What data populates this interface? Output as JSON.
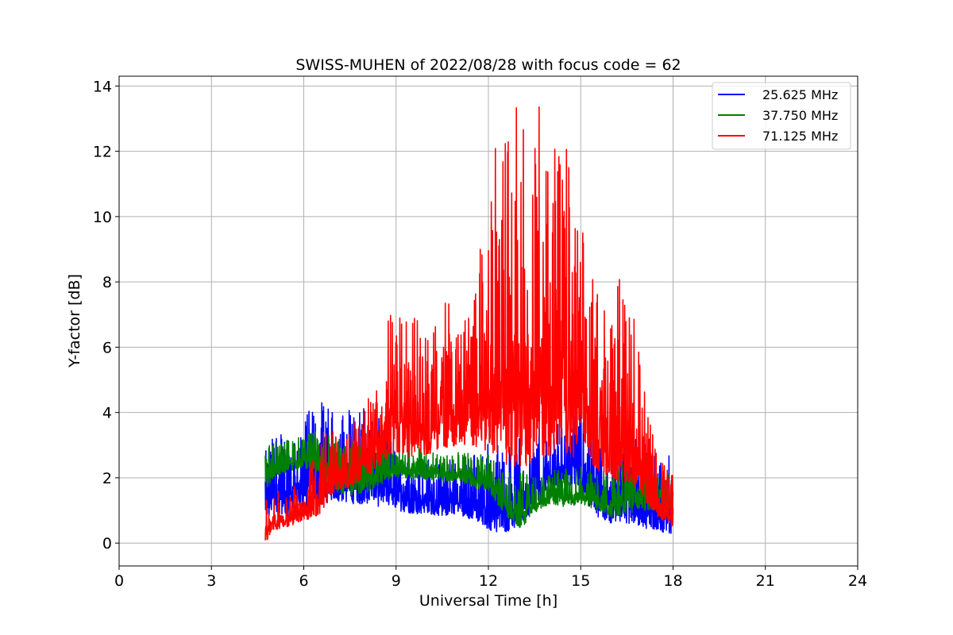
{
  "chart_data": {
    "type": "line",
    "title": "SWISS-MUHEN of 2022/08/28 with focus code = 62",
    "xlabel": "Universal Time [h]",
    "ylabel": "Y-factor [dB]",
    "xlim": [
      0,
      24
    ],
    "ylim": [
      -0.7,
      14.3
    ],
    "xticks": [
      "0",
      "3",
      "6",
      "9",
      "12",
      "15",
      "18",
      "21",
      "24"
    ],
    "yticks": [
      "0",
      "2",
      "4",
      "6",
      "8",
      "10",
      "12",
      "14"
    ],
    "grid": true,
    "legend_position": "top-right",
    "series": [
      {
        "name": "25.625 MHz",
        "color": "#0000ff",
        "x": [
          4.75,
          5.0,
          5.5,
          6.0,
          6.5,
          7.0,
          7.5,
          8.0,
          8.5,
          9.0,
          9.5,
          10.0,
          10.5,
          11.0,
          11.5,
          12.0,
          12.5,
          13.0,
          13.5,
          14.0,
          14.5,
          15.0,
          15.5,
          16.0,
          16.5,
          17.0,
          17.5,
          18.0
        ],
        "low": [
          0.5,
          1.0,
          0.8,
          1.0,
          1.2,
          1.3,
          1.2,
          1.2,
          1.1,
          1.0,
          0.9,
          0.9,
          0.8,
          0.9,
          0.7,
          0.4,
          0.3,
          0.5,
          1.0,
          1.5,
          1.8,
          1.5,
          0.8,
          0.6,
          0.6,
          0.5,
          0.3,
          0.3
        ],
        "high": [
          2.8,
          3.3,
          3.6,
          3.9,
          4.4,
          4.0,
          4.2,
          4.2,
          3.8,
          3.0,
          2.6,
          2.7,
          2.6,
          2.6,
          2.8,
          3.2,
          3.0,
          3.3,
          3.5,
          3.6,
          3.9,
          4.5,
          3.3,
          3.0,
          3.3,
          3.2,
          2.9,
          2.6
        ]
      },
      {
        "name": "37.750 MHz",
        "color": "#008000",
        "x": [
          4.75,
          5.0,
          5.5,
          6.0,
          6.5,
          7.0,
          7.5,
          8.0,
          8.5,
          9.0,
          9.5,
          10.0,
          10.5,
          11.0,
          11.5,
          12.0,
          12.5,
          13.0,
          13.5,
          14.0,
          14.5,
          15.0,
          15.5,
          16.0,
          16.5,
          17.0,
          17.5,
          18.0
        ],
        "low": [
          1.6,
          2.0,
          2.2,
          2.3,
          2.1,
          1.5,
          1.4,
          1.5,
          1.8,
          2.0,
          2.0,
          1.9,
          1.9,
          1.9,
          1.7,
          1.6,
          0.9,
          0.4,
          0.9,
          1.2,
          1.1,
          1.2,
          1.0,
          0.8,
          0.9,
          1.0,
          1.0,
          1.0
        ],
        "high": [
          2.9,
          3.1,
          3.2,
          3.3,
          3.5,
          3.3,
          3.1,
          3.0,
          3.2,
          2.8,
          3.0,
          2.9,
          2.7,
          2.8,
          2.8,
          2.7,
          2.4,
          2.2,
          2.0,
          2.2,
          2.3,
          2.4,
          2.3,
          2.2,
          2.8,
          3.0,
          2.6,
          2.0
        ]
      },
      {
        "name": "71.125 MHz",
        "color": "#ff0000",
        "x": [
          4.75,
          5.0,
          5.5,
          6.0,
          6.5,
          7.0,
          7.5,
          8.0,
          8.5,
          8.8,
          9.0,
          9.5,
          10.0,
          10.5,
          11.0,
          11.5,
          12.0,
          12.3,
          12.6,
          13.0,
          13.3,
          13.6,
          14.0,
          14.3,
          14.6,
          15.0,
          15.3,
          15.6,
          16.0,
          16.3,
          16.6,
          17.0,
          17.5,
          18.0
        ],
        "low": [
          0.0,
          0.4,
          0.5,
          0.7,
          0.8,
          1.6,
          1.7,
          2.0,
          2.4,
          2.6,
          2.8,
          2.6,
          2.7,
          2.9,
          3.0,
          3.0,
          2.8,
          2.6,
          2.4,
          2.3,
          2.4,
          2.6,
          2.7,
          2.5,
          2.6,
          2.7,
          2.4,
          2.2,
          2.0,
          1.8,
          1.9,
          1.4,
          0.8,
          0.5
        ],
        "high": [
          1.4,
          1.5,
          1.7,
          2.0,
          3.5,
          3.4,
          3.6,
          4.3,
          5.0,
          7.6,
          6.8,
          7.2,
          6.2,
          7.8,
          6.8,
          7.9,
          10.5,
          13.0,
          12.6,
          13.6,
          12.8,
          13.5,
          13.6,
          13.2,
          12.0,
          10.0,
          8.5,
          8.2,
          7.0,
          8.7,
          9.7,
          5.0,
          2.6,
          2.2
        ]
      }
    ]
  }
}
